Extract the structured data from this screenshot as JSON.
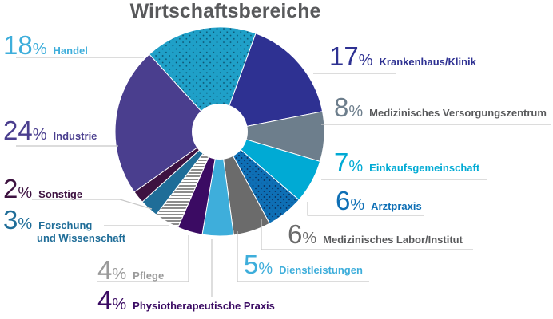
{
  "chart_data": {
    "type": "pie",
    "title": "Wirtschaftsbereiche",
    "unit": "%",
    "slices": [
      {
        "label": "Krankenhaus/Klinik",
        "value": 17,
        "color": "#2e3192"
      },
      {
        "label": "Medizinisches Versorgungszentrum",
        "value": 8,
        "color": "#6d7e8c"
      },
      {
        "label": "Einkaufsgemeinschaft",
        "value": 7,
        "color": "#00aad4"
      },
      {
        "label": "Arztpraxis",
        "value": 6,
        "color": "#0e6fb5"
      },
      {
        "label": "Medizinisches Labor/Institut",
        "value": 6,
        "color": "#6b6b6b"
      },
      {
        "label": "Dienstleistungen",
        "value": 5,
        "color": "#3eaedb"
      },
      {
        "label": "Physiotherapeutische Praxis",
        "value": 4,
        "color": "#3b0b63"
      },
      {
        "label": "Pflege",
        "value": 4,
        "color": "#9a9a9a"
      },
      {
        "label": "Forschung und Wissenschaft",
        "value": 3,
        "color": "#1f6d98"
      },
      {
        "label": "Sonstige",
        "value": 2,
        "color": "#3d1240"
      },
      {
        "label": "Industrie",
        "value": 24,
        "color": "#4a3e8e"
      },
      {
        "label": "Handel",
        "value": 18,
        "color": "#1fa0c8"
      }
    ]
  }
}
